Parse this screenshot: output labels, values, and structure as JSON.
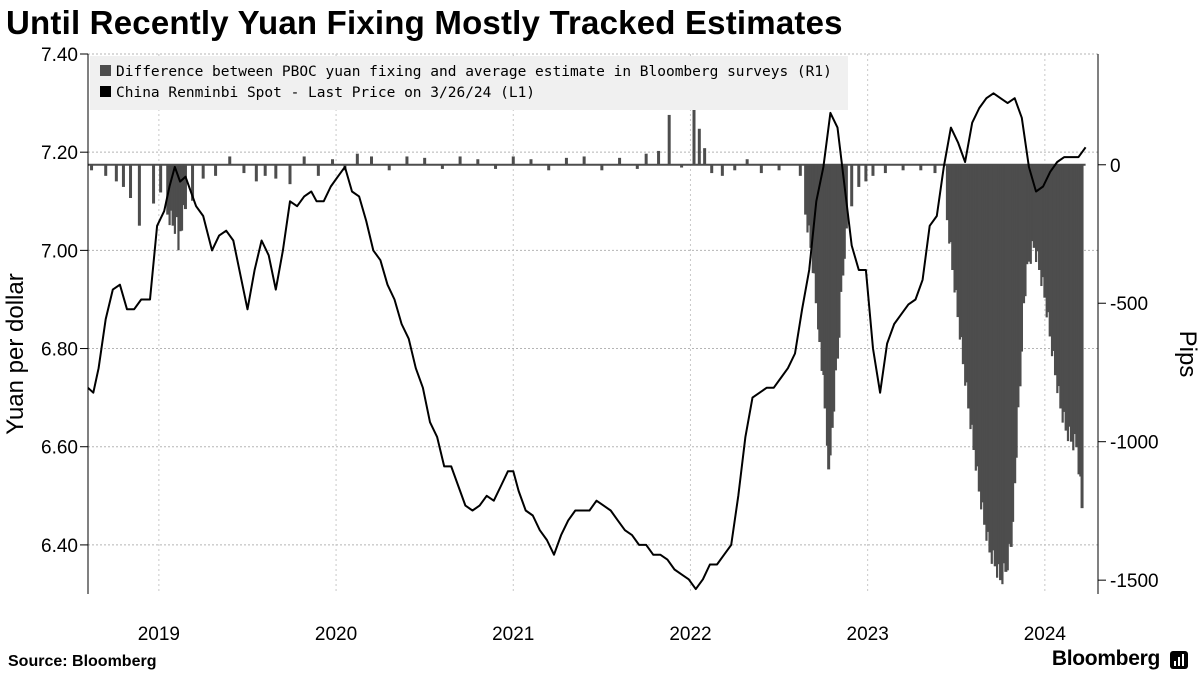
{
  "title": "Until Recently Yuan Fixing Mostly Tracked Estimates",
  "source": "Source: Bloomberg",
  "brand": "Bloomberg",
  "chart_data": {
    "type": "line",
    "legend": {
      "placement": "top-left",
      "entries": [
        "Difference between PBOC yuan fixing and average estimate in Bloomberg surveys (R1)",
        "China Renminbi Spot - Last Price on 3/26/24 (L1)"
      ]
    },
    "y_left": {
      "label": "Yuan per dollar",
      "ticks": [
        7.4,
        7.2,
        7.0,
        6.8,
        6.6,
        6.4
      ],
      "tick_labels": [
        "7.40",
        "7.20",
        "7.00",
        "6.80",
        "6.60",
        "6.40"
      ],
      "range": [
        6.3,
        7.4
      ]
    },
    "y_right": {
      "label": "Pips",
      "ticks": [
        0,
        -500,
        -1000,
        -1500
      ],
      "tick_labels": [
        "0",
        "-500",
        "-1000",
        "-1500"
      ],
      "range": [
        -1550,
        400
      ]
    },
    "x": {
      "tick_labels": [
        "2019",
        "2020",
        "2021",
        "2022",
        "2023",
        "2024"
      ],
      "ticks": [
        2019,
        2020,
        2021,
        2022,
        2023,
        2024
      ],
      "range": [
        2018.6,
        2024.3
      ]
    },
    "grid": true,
    "series": [
      {
        "name": "China Renminbi Spot - Last Price on 3/26/24 (L1)",
        "axis": "left",
        "color": "#000000",
        "type": "line",
        "points": [
          [
            2018.6,
            6.72
          ],
          [
            2018.63,
            6.71
          ],
          [
            2018.66,
            6.76
          ],
          [
            2018.7,
            6.86
          ],
          [
            2018.74,
            6.92
          ],
          [
            2018.78,
            6.93
          ],
          [
            2018.82,
            6.88
          ],
          [
            2018.86,
            6.88
          ],
          [
            2018.9,
            6.9
          ],
          [
            2018.95,
            6.9
          ],
          [
            2018.99,
            7.05
          ],
          [
            2019.03,
            7.08
          ],
          [
            2019.06,
            7.13
          ],
          [
            2019.09,
            7.17
          ],
          [
            2019.12,
            7.14
          ],
          [
            2019.15,
            7.15
          ],
          [
            2019.18,
            7.12
          ],
          [
            2019.21,
            7.09
          ],
          [
            2019.25,
            7.07
          ],
          [
            2019.3,
            7.0
          ],
          [
            2019.34,
            7.03
          ],
          [
            2019.38,
            7.04
          ],
          [
            2019.42,
            7.02
          ],
          [
            2019.46,
            6.95
          ],
          [
            2019.5,
            6.88
          ],
          [
            2019.54,
            6.96
          ],
          [
            2019.58,
            7.02
          ],
          [
            2019.62,
            6.99
          ],
          [
            2019.66,
            6.92
          ],
          [
            2019.7,
            7.0
          ],
          [
            2019.74,
            7.1
          ],
          [
            2019.78,
            7.09
          ],
          [
            2019.82,
            7.11
          ],
          [
            2019.86,
            7.12
          ],
          [
            2019.89,
            7.1
          ],
          [
            2019.93,
            7.1
          ],
          [
            2019.97,
            7.13
          ],
          [
            2020.01,
            7.15
          ],
          [
            2020.05,
            7.17
          ],
          [
            2020.09,
            7.12
          ],
          [
            2020.13,
            7.11
          ],
          [
            2020.17,
            7.06
          ],
          [
            2020.21,
            7.0
          ],
          [
            2020.25,
            6.98
          ],
          [
            2020.29,
            6.93
          ],
          [
            2020.33,
            6.9
          ],
          [
            2020.37,
            6.85
          ],
          [
            2020.41,
            6.82
          ],
          [
            2020.45,
            6.76
          ],
          [
            2020.49,
            6.72
          ],
          [
            2020.53,
            6.65
          ],
          [
            2020.57,
            6.62
          ],
          [
            2020.61,
            6.56
          ],
          [
            2020.65,
            6.56
          ],
          [
            2020.69,
            6.52
          ],
          [
            2020.73,
            6.48
          ],
          [
            2020.77,
            6.47
          ],
          [
            2020.81,
            6.48
          ],
          [
            2020.85,
            6.5
          ],
          [
            2020.89,
            6.49
          ],
          [
            2020.93,
            6.52
          ],
          [
            2020.97,
            6.55
          ],
          [
            2021.0,
            6.55
          ],
          [
            2021.03,
            6.51
          ],
          [
            2021.07,
            6.47
          ],
          [
            2021.11,
            6.46
          ],
          [
            2021.15,
            6.43
          ],
          [
            2021.19,
            6.41
          ],
          [
            2021.23,
            6.38
          ],
          [
            2021.27,
            6.42
          ],
          [
            2021.31,
            6.45
          ],
          [
            2021.35,
            6.47
          ],
          [
            2021.39,
            6.47
          ],
          [
            2021.43,
            6.47
          ],
          [
            2021.47,
            6.49
          ],
          [
            2021.51,
            6.48
          ],
          [
            2021.55,
            6.47
          ],
          [
            2021.59,
            6.45
          ],
          [
            2021.63,
            6.43
          ],
          [
            2021.67,
            6.42
          ],
          [
            2021.71,
            6.4
          ],
          [
            2021.75,
            6.4
          ],
          [
            2021.79,
            6.38
          ],
          [
            2021.83,
            6.38
          ],
          [
            2021.87,
            6.37
          ],
          [
            2021.91,
            6.35
          ],
          [
            2021.95,
            6.34
          ],
          [
            2021.99,
            6.33
          ],
          [
            2022.03,
            6.31
          ],
          [
            2022.07,
            6.33
          ],
          [
            2022.11,
            6.36
          ],
          [
            2022.15,
            6.36
          ],
          [
            2022.19,
            6.38
          ],
          [
            2022.23,
            6.4
          ],
          [
            2022.27,
            6.5
          ],
          [
            2022.31,
            6.62
          ],
          [
            2022.35,
            6.7
          ],
          [
            2022.39,
            6.71
          ],
          [
            2022.43,
            6.72
          ],
          [
            2022.47,
            6.72
          ],
          [
            2022.51,
            6.74
          ],
          [
            2022.55,
            6.76
          ],
          [
            2022.59,
            6.79
          ],
          [
            2022.63,
            6.88
          ],
          [
            2022.67,
            6.96
          ],
          [
            2022.71,
            7.1
          ],
          [
            2022.75,
            7.17
          ],
          [
            2022.79,
            7.28
          ],
          [
            2022.83,
            7.25
          ],
          [
            2022.87,
            7.13
          ],
          [
            2022.91,
            7.01
          ],
          [
            2022.95,
            6.96
          ],
          [
            2022.99,
            6.96
          ],
          [
            2023.03,
            6.8
          ],
          [
            2023.07,
            6.71
          ],
          [
            2023.11,
            6.81
          ],
          [
            2023.15,
            6.85
          ],
          [
            2023.19,
            6.87
          ],
          [
            2023.23,
            6.89
          ],
          [
            2023.27,
            6.9
          ],
          [
            2023.31,
            6.94
          ],
          [
            2023.35,
            7.05
          ],
          [
            2023.39,
            7.07
          ],
          [
            2023.43,
            7.17
          ],
          [
            2023.47,
            7.25
          ],
          [
            2023.51,
            7.22
          ],
          [
            2023.55,
            7.18
          ],
          [
            2023.59,
            7.26
          ],
          [
            2023.63,
            7.29
          ],
          [
            2023.67,
            7.31
          ],
          [
            2023.71,
            7.32
          ],
          [
            2023.75,
            7.31
          ],
          [
            2023.79,
            7.3
          ],
          [
            2023.83,
            7.31
          ],
          [
            2023.87,
            7.27
          ],
          [
            2023.91,
            7.17
          ],
          [
            2023.95,
            7.12
          ],
          [
            2023.99,
            7.13
          ],
          [
            2024.03,
            7.16
          ],
          [
            2024.07,
            7.18
          ],
          [
            2024.11,
            7.19
          ],
          [
            2024.15,
            7.19
          ],
          [
            2024.19,
            7.19
          ],
          [
            2024.23,
            7.21
          ]
        ]
      },
      {
        "name": "Difference between PBOC yuan fixing and average estimate in Bloomberg surveys (R1)",
        "axis": "right",
        "color": "#4d4d4d",
        "type": "bar",
        "points": [
          [
            2018.62,
            -20
          ],
          [
            2018.7,
            -40
          ],
          [
            2018.76,
            -60
          ],
          [
            2018.8,
            -80
          ],
          [
            2018.84,
            -120
          ],
          [
            2018.89,
            -220
          ],
          [
            2018.97,
            -140
          ],
          [
            2019.01,
            -100
          ],
          [
            2019.05,
            -180
          ],
          [
            2019.08,
            -220
          ],
          [
            2019.12,
            -240
          ],
          [
            2019.15,
            -160
          ],
          [
            2019.19,
            -130
          ],
          [
            2019.25,
            -50
          ],
          [
            2019.32,
            -40
          ],
          [
            2019.4,
            30
          ],
          [
            2019.48,
            -30
          ],
          [
            2019.55,
            -60
          ],
          [
            2019.6,
            -40
          ],
          [
            2019.66,
            -50
          ],
          [
            2019.74,
            -70
          ],
          [
            2019.82,
            30
          ],
          [
            2019.9,
            -40
          ],
          [
            2019.98,
            20
          ],
          [
            2020.05,
            -20
          ],
          [
            2020.12,
            40
          ],
          [
            2020.2,
            30
          ],
          [
            2020.3,
            -20
          ],
          [
            2020.4,
            30
          ],
          [
            2020.5,
            25
          ],
          [
            2020.6,
            -15
          ],
          [
            2020.7,
            30
          ],
          [
            2020.8,
            20
          ],
          [
            2020.9,
            -15
          ],
          [
            2021.0,
            30
          ],
          [
            2021.1,
            20
          ],
          [
            2021.2,
            -20
          ],
          [
            2021.3,
            25
          ],
          [
            2021.4,
            30
          ],
          [
            2021.5,
            -20
          ],
          [
            2021.6,
            25
          ],
          [
            2021.7,
            -15
          ],
          [
            2021.75,
            40
          ],
          [
            2021.82,
            50
          ],
          [
            2021.88,
            180
          ],
          [
            2021.95,
            -10
          ],
          [
            2022.02,
            270
          ],
          [
            2022.05,
            130
          ],
          [
            2022.08,
            60
          ],
          [
            2022.12,
            -30
          ],
          [
            2022.18,
            -40
          ],
          [
            2022.25,
            -20
          ],
          [
            2022.32,
            20
          ],
          [
            2022.4,
            -30
          ],
          [
            2022.5,
            -20
          ],
          [
            2022.62,
            -40
          ],
          [
            2022.65,
            -180
          ],
          [
            2022.68,
            -300
          ],
          [
            2022.71,
            -500
          ],
          [
            2022.73,
            -640
          ],
          [
            2022.76,
            -880
          ],
          [
            2022.78,
            -1100
          ],
          [
            2022.8,
            -950
          ],
          [
            2022.83,
            -700
          ],
          [
            2022.86,
            -400
          ],
          [
            2022.88,
            -230
          ],
          [
            2022.91,
            -150
          ],
          [
            2022.95,
            -80
          ],
          [
            2022.99,
            -60
          ],
          [
            2023.03,
            -40
          ],
          [
            2023.1,
            -30
          ],
          [
            2023.2,
            -20
          ],
          [
            2023.3,
            -20
          ],
          [
            2023.38,
            -30
          ],
          [
            2023.45,
            -200
          ],
          [
            2023.48,
            -380
          ],
          [
            2023.51,
            -550
          ],
          [
            2023.54,
            -720
          ],
          [
            2023.57,
            -880
          ],
          [
            2023.6,
            -1030
          ],
          [
            2023.63,
            -1180
          ],
          [
            2023.66,
            -1300
          ],
          [
            2023.69,
            -1400
          ],
          [
            2023.72,
            -1450
          ],
          [
            2023.75,
            -1500
          ],
          [
            2023.78,
            -1470
          ],
          [
            2023.81,
            -1380
          ],
          [
            2023.83,
            -1150
          ],
          [
            2023.86,
            -800
          ],
          [
            2023.88,
            -500
          ],
          [
            2023.91,
            -350
          ],
          [
            2023.94,
            -300
          ],
          [
            2023.97,
            -380
          ],
          [
            2024.0,
            -480
          ],
          [
            2024.03,
            -620
          ],
          [
            2024.06,
            -760
          ],
          [
            2024.09,
            -880
          ],
          [
            2024.12,
            -960
          ],
          [
            2024.15,
            -1000
          ],
          [
            2024.18,
            -1020
          ],
          [
            2024.21,
            -1240
          ]
        ]
      }
    ]
  }
}
